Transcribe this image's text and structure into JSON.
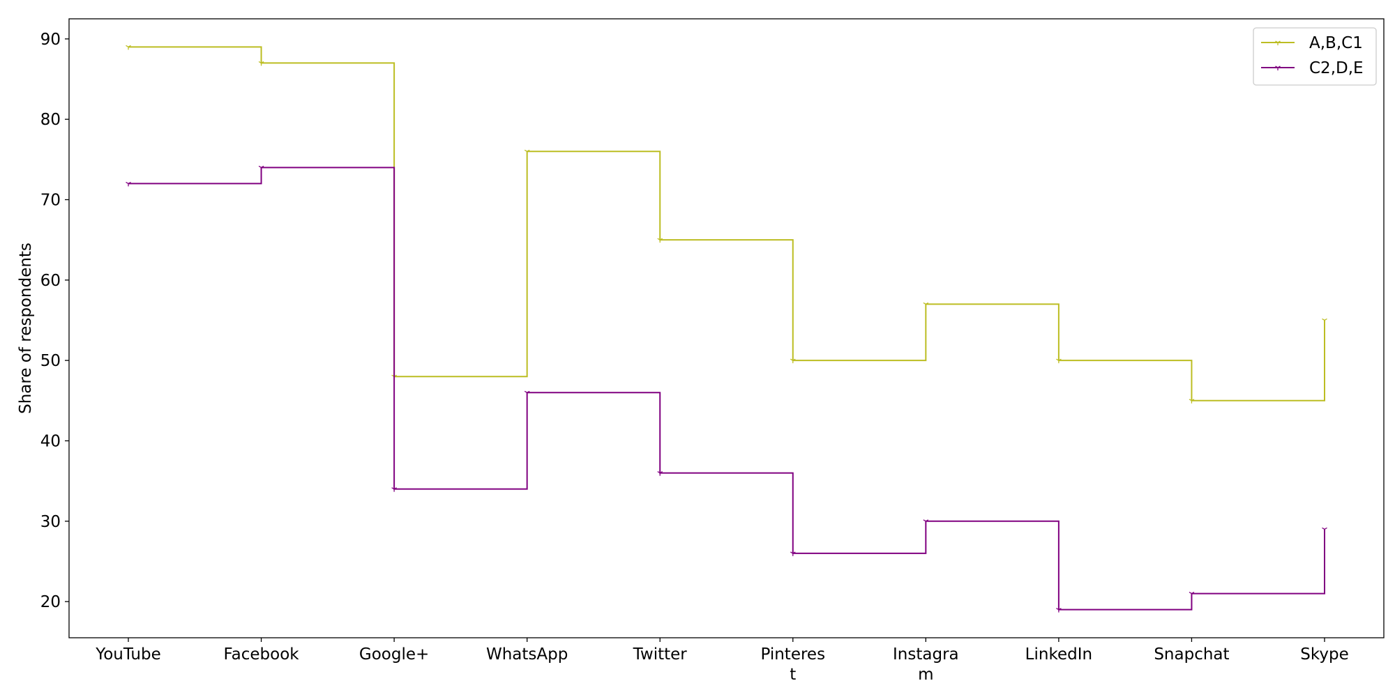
{
  "chart_data": {
    "type": "line",
    "drawstyle": "steps-post",
    "categories": [
      "YouTube",
      "Facebook",
      "Google+",
      "WhatsApp",
      "Twitter",
      "Pinterest",
      "Instagram",
      "LinkedIn",
      "Snapchat",
      "Skype"
    ],
    "category_display_lines": [
      [
        "YouTube"
      ],
      [
        "Facebook"
      ],
      [
        "Google+"
      ],
      [
        "WhatsApp"
      ],
      [
        "Twitter"
      ],
      [
        "Pinteres",
        "t"
      ],
      [
        "Instagra",
        "m"
      ],
      [
        "LinkedIn"
      ],
      [
        "Snapchat"
      ],
      [
        "Skype"
      ]
    ],
    "series": [
      {
        "name": "A,B,C1",
        "values": [
          89,
          87,
          48,
          76,
          65,
          50,
          57,
          50,
          45,
          55
        ],
        "color": "#bcbd22",
        "marker": "tri_down"
      },
      {
        "name": "C2,D,E",
        "values": [
          72,
          74,
          34,
          46,
          36,
          26,
          30,
          19,
          21,
          29
        ],
        "color": "#800080",
        "marker": "tri_down"
      }
    ],
    "title": "",
    "xlabel": "",
    "ylabel": "Share of respondents",
    "ylim": [
      15.5,
      92.5
    ],
    "yticks": [
      20,
      30,
      40,
      50,
      60,
      70,
      80,
      90
    ],
    "grid": false,
    "legend_position": "top-right"
  }
}
